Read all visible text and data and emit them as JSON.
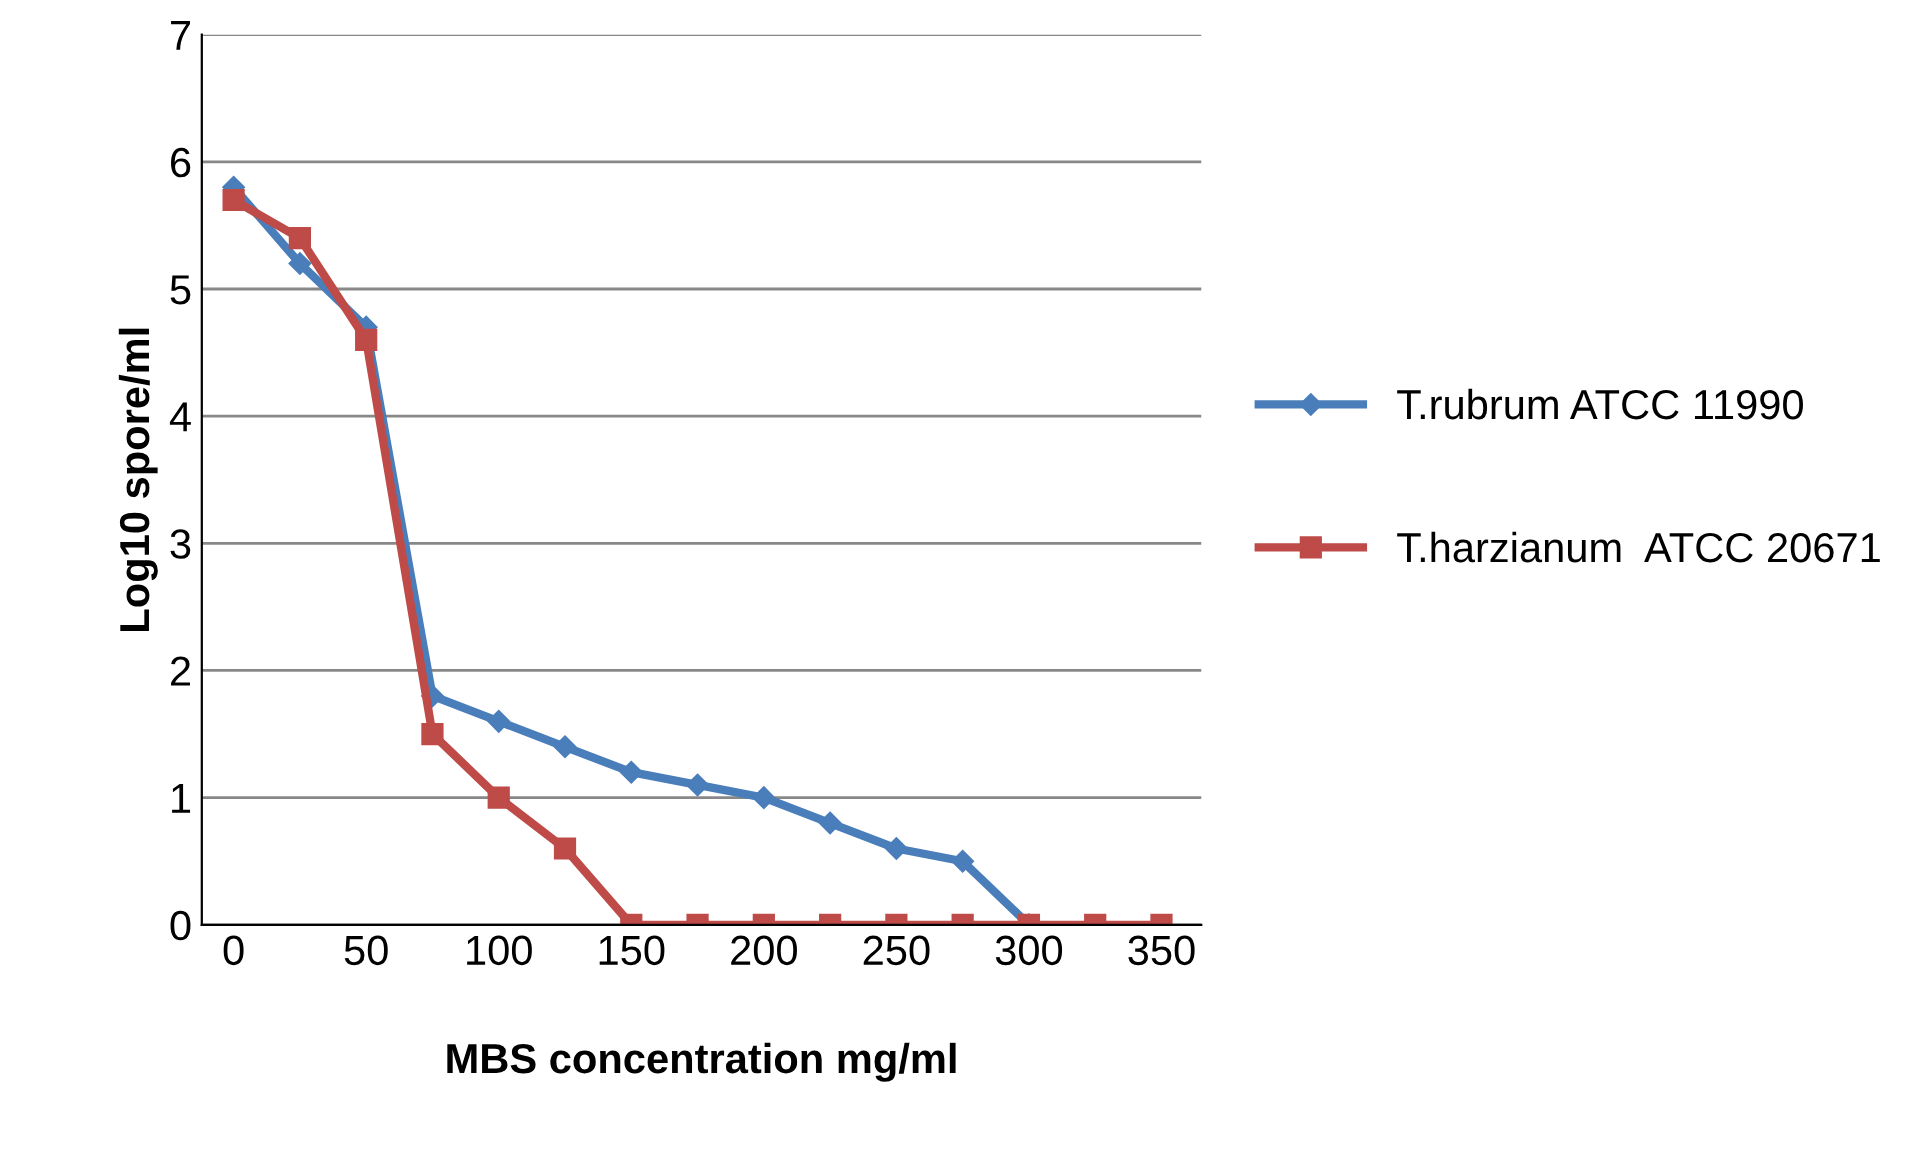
{
  "chart_data": {
    "type": "line",
    "xlabel": "MBS concentration mg/ml",
    "ylabel": "Log10 spore/ml",
    "x": [
      0,
      25,
      50,
      75,
      100,
      125,
      150,
      175,
      200,
      225,
      250,
      275,
      300,
      325,
      350
    ],
    "series": [
      {
        "name": "T.rubrum ATCC 11990",
        "color": "#4a7ebb",
        "marker": "diamond",
        "values": [
          5.8,
          5.2,
          4.7,
          1.8,
          1.6,
          1.4,
          1.2,
          1.1,
          1.0,
          0.8,
          0.6,
          0.5,
          0.0,
          null,
          null
        ]
      },
      {
        "name": "T.harzianum  ATCC 20671",
        "color": "#be4b48",
        "marker": "square",
        "values": [
          5.7,
          5.4,
          4.6,
          1.5,
          1.0,
          0.6,
          0.0,
          0.0,
          0.0,
          0.0,
          0.0,
          0.0,
          0.0,
          0.0,
          0.0
        ]
      }
    ],
    "xlim": [
      -12,
      365
    ],
    "xticks": [
      0,
      50,
      100,
      150,
      200,
      250,
      300,
      350
    ],
    "ylim": [
      0,
      7
    ],
    "yticks": [
      0,
      1,
      2,
      3,
      4,
      5,
      6,
      7
    ],
    "grid": "y",
    "legend": "right"
  }
}
